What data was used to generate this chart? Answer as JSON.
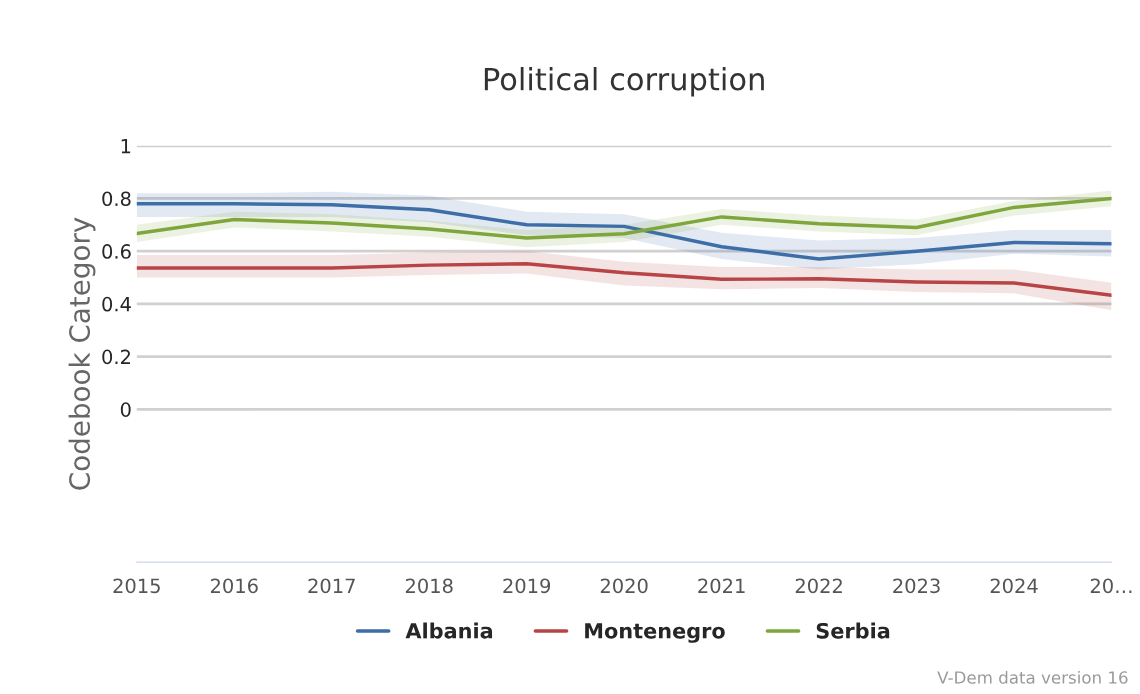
{
  "chart_data": {
    "type": "line",
    "title": "Political corruption",
    "ylabel": "Codebook Category",
    "x": [
      2015,
      2016,
      2017,
      2018,
      2019,
      2020,
      2021,
      2022,
      2023,
      2024,
      2025
    ],
    "series": [
      {
        "name": "Albania",
        "color": "#3d6ea8",
        "values": [
          0.78,
          0.78,
          0.776,
          0.757,
          0.7,
          0.694,
          0.617,
          0.57,
          0.6,
          0.633,
          0.628
        ],
        "lower": [
          0.73,
          0.73,
          0.73,
          0.71,
          0.66,
          0.65,
          0.57,
          0.53,
          0.55,
          0.59,
          0.58
        ],
        "upper": [
          0.82,
          0.82,
          0.825,
          0.81,
          0.75,
          0.74,
          0.67,
          0.64,
          0.65,
          0.68,
          0.68
        ]
      },
      {
        "name": "Montenegro",
        "color": "#b84545",
        "values": [
          0.536,
          0.536,
          0.536,
          0.547,
          0.552,
          0.518,
          0.493,
          0.495,
          0.483,
          0.479,
          0.433
        ],
        "lower": [
          0.5,
          0.5,
          0.5,
          0.51,
          0.515,
          0.47,
          0.455,
          0.46,
          0.445,
          0.44,
          0.376
        ],
        "upper": [
          0.585,
          0.585,
          0.585,
          0.595,
          0.6,
          0.56,
          0.54,
          0.54,
          0.53,
          0.53,
          0.48
        ]
      },
      {
        "name": "Serbia",
        "color": "#7fa63c",
        "values": [
          0.667,
          0.72,
          0.707,
          0.684,
          0.65,
          0.666,
          0.73,
          0.704,
          0.69,
          0.766,
          0.8
        ],
        "lower": [
          0.635,
          0.69,
          0.675,
          0.655,
          0.615,
          0.635,
          0.7,
          0.675,
          0.66,
          0.735,
          0.77
        ],
        "upper": [
          0.7,
          0.75,
          0.74,
          0.715,
          0.68,
          0.7,
          0.76,
          0.735,
          0.72,
          0.79,
          0.83
        ]
      }
    ],
    "xlim": [
      2015,
      2025
    ],
    "xticks": [
      2015,
      2016,
      2017,
      2018,
      2019,
      2020,
      2021,
      2022,
      2023,
      2024,
      {
        "value": 2025,
        "label": "20…"
      }
    ],
    "ylim": [
      -0.58,
      1
    ],
    "yticks": [
      0,
      0.2,
      0.4,
      0.6,
      0.8,
      1
    ],
    "grid": "y",
    "legend": "bottom",
    "marker": "none",
    "line_style": "solid",
    "annotations": [
      "V-Dem data version 16"
    ]
  }
}
